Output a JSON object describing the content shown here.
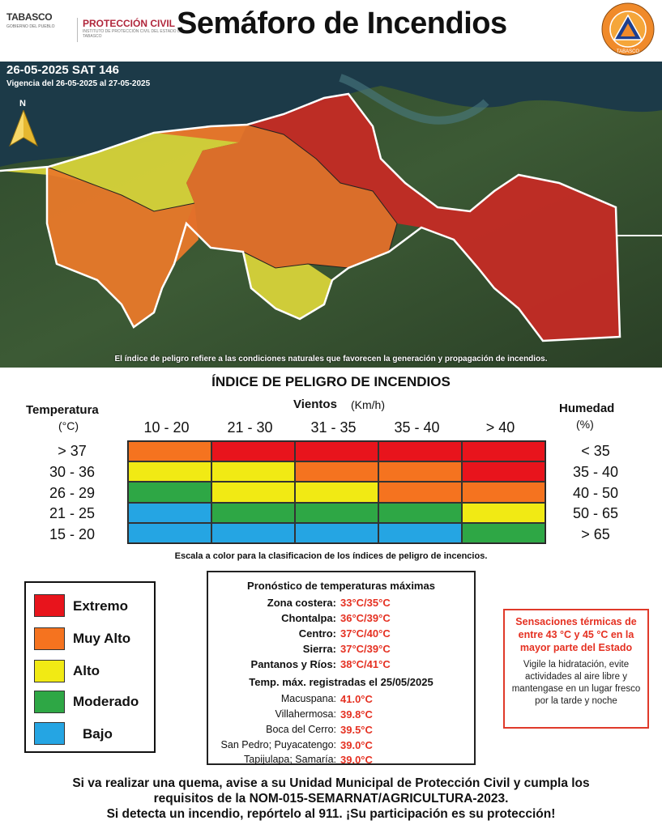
{
  "header": {
    "logo_tabasco": "TABASCO",
    "logo_tabasco_sub": "GOBIERNO DEL PUEBLO",
    "logo_pc": "PROTECCIÓN CIVIL",
    "logo_pc_sub": "INSTITUTO DE PROTECCIÓN CIVIL DEL ESTADO DE TABASCO",
    "title": "Semáforo de Incendios",
    "seal_text": "TABASCO"
  },
  "map": {
    "date": "26-05-2025 SAT 146",
    "validity": "Vigencia del 26-05-2025 al 27-05-2025",
    "north": "N",
    "note": "El índice de peligro refiere a las condiciones naturales que favorecen la generación y propagación de incendios."
  },
  "index": {
    "title": "ÍNDICE DE PELIGRO DE INCENDIOS",
    "temp_label": "Temperatura",
    "temp_unit": "(°C)",
    "wind_label": "Vientos",
    "wind_unit": "(Km/h)",
    "hum_label": "Humedad",
    "hum_unit": "(%)",
    "wind_ranges": [
      "10 - 20",
      "21 - 30",
      "31 - 35",
      "35 - 40",
      "> 40"
    ],
    "temp_ranges": [
      "> 37",
      "30 - 36",
      "26 - 29",
      "21 - 25",
      "15 - 20"
    ],
    "hum_ranges": [
      "< 35",
      "35 - 40",
      "40 - 50",
      "50 - 65",
      "> 65"
    ],
    "scale_note": "Escala a color para la clasificacion de los índices de peligro de incencios."
  },
  "colors": {
    "extremo": "#e8141c",
    "muy_alto": "#f5731f",
    "alto": "#f1ea14",
    "moderado": "#2ea745",
    "bajo": "#25a5e3"
  },
  "legend": [
    {
      "label": "Extremo",
      "color": "#e8141c"
    },
    {
      "label": "Muy Alto",
      "color": "#f5731f"
    },
    {
      "label": "Alto",
      "color": "#f1ea14"
    },
    {
      "label": "Moderado",
      "color": "#2ea745"
    },
    {
      "label": "Bajo",
      "color": "#25a5e3"
    }
  ],
  "forecast": {
    "title": "Pronóstico de temperaturas máximas",
    "zones": [
      {
        "name": "Zona costera:",
        "value": "33°C/35°C"
      },
      {
        "name": "Chontalpa:",
        "value": "36°C/39°C"
      },
      {
        "name": "Centro:",
        "value": "37°C/40°C"
      },
      {
        "name": "Sierra:",
        "value": "37°C/39°C"
      },
      {
        "name": "Pantanos y Ríos:",
        "value": "38°C/41°C"
      }
    ],
    "recorded_title": "Temp. máx. registradas el 25/05/2025",
    "recorded": [
      {
        "name": "Macuspana:",
        "value": "41.0°C"
      },
      {
        "name": "Villahermosa:",
        "value": "39.8°C"
      },
      {
        "name": "Boca del Cerro:",
        "value": "39.5°C"
      },
      {
        "name": "San Pedro; Puyacatengo:",
        "value": "39.0°C"
      },
      {
        "name": "Tapijulapa; Samaría:",
        "value": "39.0°C"
      }
    ]
  },
  "sensations": {
    "headline": "Sensaciones térmicas de entre 43 °C y 45 °C en la mayor parte del Estado",
    "advice": "Vigile la hidratación, evite actividades al aire libre y mantengase en un lugar fresco por la tarde y noche"
  },
  "footer": {
    "line1": "Si va realizar una quema, avise a su Unidad Municipal de Protección Civil y cumpla los",
    "line2": "requisitos de la NOM-015-SEMARNAT/AGRICULTURA-2023.",
    "line3": "Si detecta un incendio, repórtelo al 911. ¡Su participación es su protección!"
  }
}
